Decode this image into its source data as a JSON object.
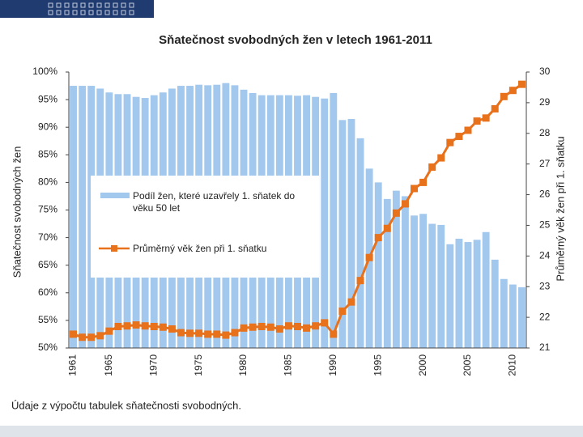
{
  "chart_data": {
    "type": "bar-line",
    "title": "Sňatečnost svobodných žen v letech 1961-2011",
    "ylabel": "Sňatečnost svobodných žen",
    "y2label": "Průměrný věk žen při 1. sňatku",
    "note": "Údaje z výpočtu tabulek sňatečnosti svobodných.",
    "categories": [
      "1961",
      null,
      null,
      null,
      "1965",
      null,
      null,
      null,
      null,
      "1970",
      null,
      null,
      null,
      null,
      "1975",
      null,
      null,
      null,
      null,
      "1980",
      null,
      null,
      null,
      null,
      "1985",
      null,
      null,
      null,
      null,
      "1990",
      null,
      null,
      null,
      null,
      "1995",
      null,
      null,
      null,
      null,
      "2000",
      null,
      null,
      null,
      null,
      "2005",
      null,
      null,
      null,
      null,
      "2010",
      null
    ],
    "series": [
      {
        "name": "Podíl žen, které uzavřely 1. sňatek do věku 50 let",
        "type": "bar",
        "color": "#a3c8ee",
        "values": [
          97.5,
          97.5,
          97.5,
          97,
          96.3,
          96,
          96,
          95.5,
          95.3,
          95.8,
          96.3,
          97,
          97.5,
          97.5,
          97.7,
          97.6,
          97.7,
          98,
          97.6,
          96.8,
          96.2,
          95.8,
          95.8,
          95.8,
          95.8,
          95.7,
          95.8,
          95.5,
          95.2,
          96.2,
          91.3,
          91.5,
          88,
          82.5,
          80,
          77,
          78.5,
          77.5,
          74,
          74.3,
          72.5,
          72.3,
          68.8,
          69.8,
          69.2,
          69.6,
          71,
          66,
          62.5,
          61.5,
          61
        ]
      },
      {
        "name": "Průměrný věk žen při 1. sňatku",
        "type": "line",
        "axis": "y2",
        "color": "#e8711c",
        "values": [
          21.45,
          21.35,
          21.35,
          21.4,
          21.55,
          21.7,
          21.72,
          21.75,
          21.72,
          21.7,
          21.68,
          21.62,
          21.5,
          21.48,
          21.48,
          21.45,
          21.45,
          21.42,
          21.5,
          21.65,
          21.68,
          21.7,
          21.68,
          21.62,
          21.72,
          21.7,
          21.65,
          21.72,
          21.82,
          21.45,
          22.2,
          22.5,
          23.2,
          23.95,
          24.6,
          24.9,
          25.4,
          25.7,
          26.2,
          26.4,
          26.9,
          27.2,
          27.7,
          27.9,
          28.1,
          28.4,
          28.5,
          28.8,
          29.2,
          29.4,
          29.6
        ]
      }
    ],
    "ylim": [
      50,
      100
    ],
    "yticks": [
      {
        "value": 50,
        "label": "50%"
      },
      {
        "value": 55,
        "label": "55%"
      },
      {
        "value": 60,
        "label": "60%"
      },
      {
        "value": 65,
        "label": "65%"
      },
      {
        "value": 70,
        "label": "70%"
      },
      {
        "value": 75,
        "label": "75%"
      },
      {
        "value": 80,
        "label": "80%"
      },
      {
        "value": 85,
        "label": "85%"
      },
      {
        "value": 90,
        "label": "90%"
      },
      {
        "value": 95,
        "label": "95%"
      },
      {
        "value": 100,
        "label": "100%"
      }
    ],
    "y2lim": [
      21,
      30
    ],
    "y2ticks": [
      21,
      22,
      23,
      24,
      25,
      26,
      27,
      28,
      29,
      30
    ]
  }
}
